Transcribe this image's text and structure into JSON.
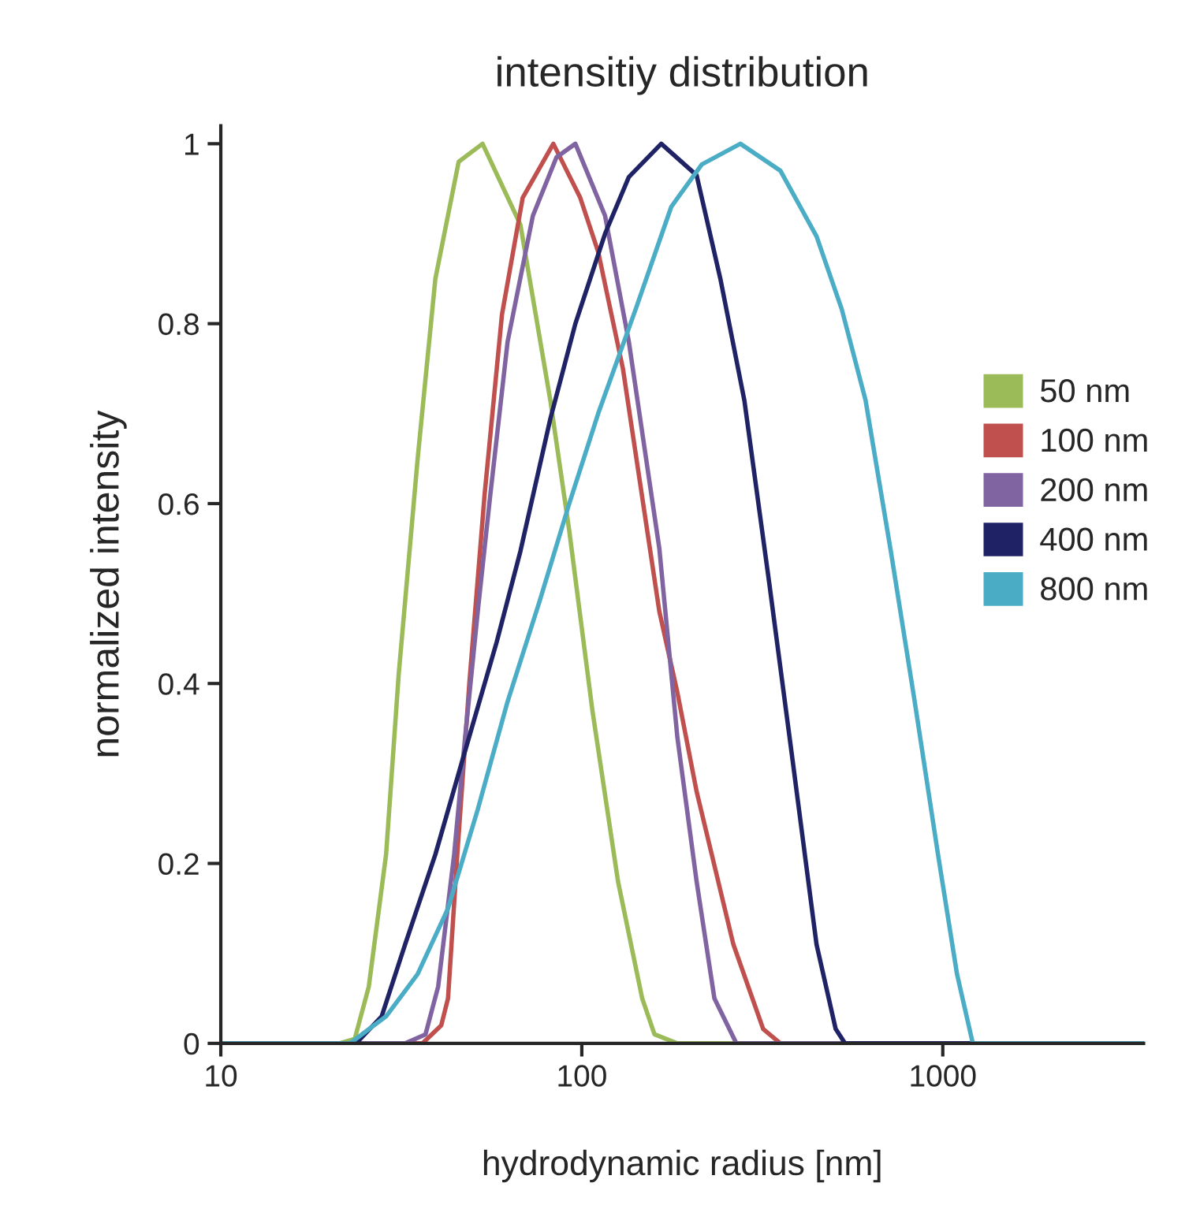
{
  "chart_data": {
    "type": "line",
    "title": "intensitiy distribution",
    "xlabel": "hydrodynamic radius [nm]",
    "ylabel": "normalized intensity",
    "log": "x",
    "xlim": [
      10,
      3600
    ],
    "xticks": [
      10,
      100,
      1000
    ],
    "ylim": [
      0,
      1.02
    ],
    "yticks": [
      0,
      0.2,
      0.4,
      0.6,
      0.8,
      1
    ],
    "grid": false,
    "legend": "right",
    "marker": "none",
    "line_style": "solid",
    "series": [
      {
        "name": "50 nm",
        "color": "#9bbb59",
        "x": [
          10,
          21.3,
          23.5,
          25.7,
          28.7,
          31.1,
          35.1,
          39.3,
          45.6,
          53.1,
          67.6,
          81.8,
          92.3,
          107,
          126,
          147,
          159,
          184,
          3600
        ],
        "values": [
          0,
          0,
          0.005,
          0.063,
          0.21,
          0.41,
          0.65,
          0.85,
          0.98,
          1.0,
          0.91,
          0.715,
          0.57,
          0.37,
          0.18,
          0.05,
          0.01,
          0,
          0
        ]
      },
      {
        "name": "100 nm",
        "color": "#c0504d",
        "x": [
          10,
          36.2,
          40.8,
          42.6,
          45.2,
          48.8,
          53.8,
          60.1,
          68.6,
          83.4,
          99,
          111,
          130,
          164,
          184,
          208,
          263,
          318,
          355,
          3600
        ],
        "values": [
          0,
          0,
          0.02,
          0.05,
          0.21,
          0.4,
          0.61,
          0.81,
          0.94,
          1.0,
          0.94,
          0.88,
          0.75,
          0.48,
          0.39,
          0.28,
          0.11,
          0.016,
          0,
          0
        ]
      },
      {
        "name": "200 nm",
        "color": "#8064a2",
        "x": [
          10,
          32.4,
          36.9,
          40.0,
          44.3,
          47.5,
          51.5,
          55.8,
          62.3,
          73.2,
          85.1,
          96.0,
          116,
          135,
          164,
          184,
          208,
          233,
          268,
          3600
        ],
        "values": [
          0,
          0,
          0.01,
          0.063,
          0.21,
          0.34,
          0.48,
          0.61,
          0.78,
          0.92,
          0.985,
          1.0,
          0.92,
          0.78,
          0.55,
          0.34,
          0.18,
          0.05,
          0,
          0
        ]
      },
      {
        "name": "400 nm",
        "color": "#1f2366",
        "x": [
          10,
          23.7,
          27.9,
          32.4,
          39.3,
          47.5,
          58.1,
          67.6,
          81.8,
          96.0,
          116,
          135,
          166,
          208,
          242,
          282,
          331,
          385,
          447,
          505,
          536,
          3600
        ],
        "values": [
          0,
          0,
          0.03,
          0.11,
          0.21,
          0.325,
          0.446,
          0.547,
          0.694,
          0.8,
          0.9,
          0.963,
          1.0,
          0.965,
          0.85,
          0.715,
          0.51,
          0.31,
          0.11,
          0.016,
          0,
          0
        ]
      },
      {
        "name": "800 nm",
        "color": "#4bacc6",
        "x": [
          10,
          22.8,
          28.7,
          35.1,
          42.6,
          51.5,
          62.3,
          76.2,
          92.3,
          111,
          141,
          177,
          215,
          275,
          355,
          447,
          525,
          611,
          718,
          836,
          970,
          1095,
          1211,
          3600
        ],
        "values": [
          0,
          0,
          0.03,
          0.077,
          0.15,
          0.26,
          0.38,
          0.49,
          0.6,
          0.7,
          0.816,
          0.93,
          0.977,
          1.0,
          0.97,
          0.897,
          0.816,
          0.715,
          0.547,
          0.38,
          0.21,
          0.077,
          0,
          0
        ]
      }
    ]
  }
}
